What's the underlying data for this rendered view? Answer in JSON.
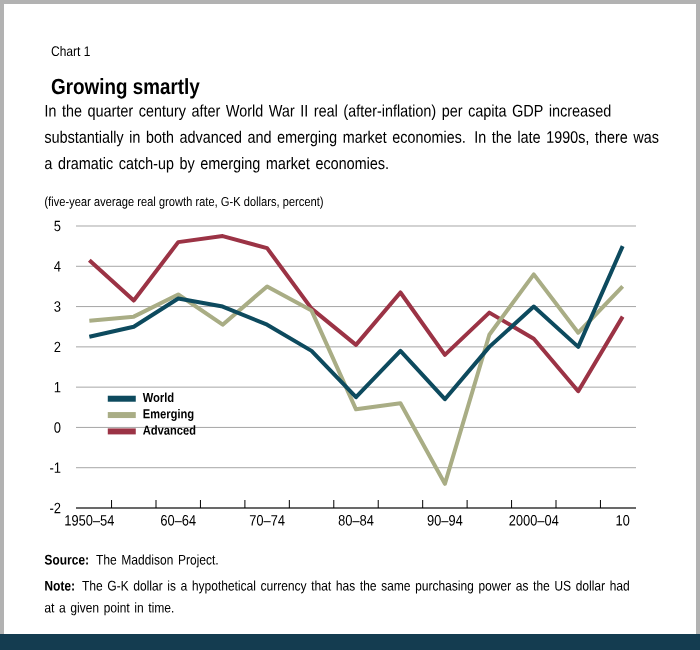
{
  "chart_data": {
    "type": "line",
    "title": "Growing smartly",
    "subtitle": "In the quarter century after World War II real (after-inflation) per capita GDP increased substantially in both advanced and emerging market economies. In the late 1990s, there was a dramatic catch-up by emerging market economies.",
    "ylabel": "(five-year average real growth rate, G-K dollars, percent)",
    "categories": [
      "1950–54",
      null,
      "60–64",
      null,
      "70–74",
      null,
      "80–84",
      null,
      "90–94",
      null,
      "2000–04",
      null,
      "10"
    ],
    "series": [
      {
        "name": "World",
        "color": "#0d4a5e",
        "values": [
          2.25,
          2.5,
          3.2,
          3.0,
          2.55,
          1.9,
          0.75,
          1.9,
          0.7,
          2.0,
          3.0,
          2.0,
          4.5
        ]
      },
      {
        "name": "Emerging",
        "color": "#a9ad85",
        "values": [
          2.65,
          2.75,
          3.3,
          2.55,
          3.5,
          2.9,
          0.45,
          0.6,
          -1.4,
          2.3,
          3.8,
          2.35,
          3.5
        ]
      },
      {
        "name": "Advanced",
        "color": "#9b3345",
        "values": [
          4.15,
          3.15,
          4.6,
          4.75,
          4.45,
          2.95,
          2.05,
          3.35,
          1.8,
          2.85,
          2.2,
          0.9,
          2.75
        ]
      }
    ],
    "ylim": [
      -2,
      5
    ],
    "yticks": [
      -2,
      -1,
      0,
      1,
      2,
      3,
      4,
      5
    ],
    "grid": "y",
    "legend": "bottom left",
    "annotations": [
      "Chart 1",
      "**Source:** The Maddison Project.",
      "**Note:** The G-K dollar is a hypothetical currency that has the same purchasing power as the US dollar had at a given point in time."
    ]
  }
}
